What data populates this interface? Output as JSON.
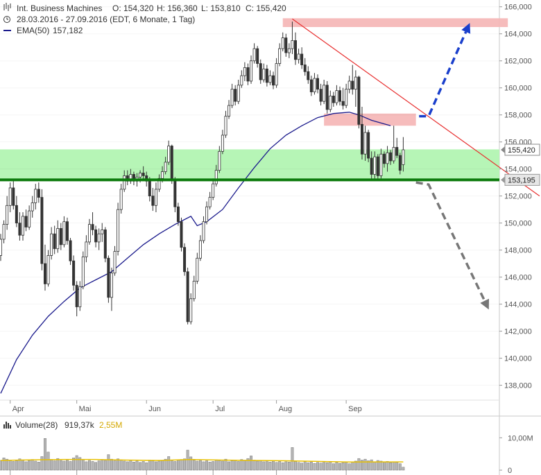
{
  "header": {
    "symbol_name": "Int. Business Machines",
    "ohlc": {
      "open": "O: 154,320",
      "high": "H: 156,360",
      "low": "L: 153,810",
      "close": "C: 155,420"
    },
    "range": "28.03.2016 - 27.09.2016 (EDT, 6 Monate, 1 Tag)",
    "ema_label": "EMA(50)",
    "ema_value": "157,182"
  },
  "volume_header": {
    "label": "Volume(28)",
    "value": "919,37k",
    "avg": "2,55M"
  },
  "colors": {
    "candle": "#333333",
    "ema": "#1a1a8c",
    "trendline": "#e83030",
    "resistance_zone": "#f5b8b8",
    "support_zone": "#b6f5b6",
    "support_line": "#0b7a0b",
    "bull_arrow": "#1a3fcc",
    "bear_arrow": "#777777",
    "volume_avg": "#e8c000"
  },
  "chart_data": {
    "type": "candlestick",
    "ylim": [
      136900,
      166500
    ],
    "yticks": [
      {
        "value": 138000,
        "label": "138,000"
      },
      {
        "value": 140000,
        "label": "140,000"
      },
      {
        "value": 142000,
        "label": "142,000"
      },
      {
        "value": 144000,
        "label": "144,000"
      },
      {
        "value": 146000,
        "label": "146,000"
      },
      {
        "value": 148000,
        "label": "148,000"
      },
      {
        "value": 150000,
        "label": "150,000"
      },
      {
        "value": 152000,
        "label": "152,000"
      },
      {
        "value": 154000,
        "label": "154,000"
      },
      {
        "value": 156000,
        "label": "156,000"
      },
      {
        "value": 158000,
        "label": "158,000"
      },
      {
        "value": 160000,
        "label": "160,000"
      },
      {
        "value": 162000,
        "label": "162,000"
      },
      {
        "value": 164000,
        "label": "164,000"
      },
      {
        "value": 166000,
        "label": "166,000"
      }
    ],
    "months": [
      {
        "label": "Apr",
        "day": 3
      },
      {
        "label": "Mai",
        "day": 24
      },
      {
        "label": "Jun",
        "day": 46
      },
      {
        "label": "Jul",
        "day": 67
      },
      {
        "label": "Aug",
        "day": 87
      },
      {
        "label": "Sep",
        "day": 109
      }
    ],
    "current_price": {
      "value": 155420,
      "label": "155,420"
    },
    "support_price": {
      "value": 153195,
      "label": "153,195"
    },
    "support_zone": [
      153195,
      155450
    ],
    "resistance_zone_upper": {
      "from_day": 89,
      "to_day": 160,
      "low": 164500,
      "high": 165150
    },
    "resistance_zone_lower": {
      "from_day": 102,
      "to_day": 131,
      "low": 157200,
      "high": 158100
    },
    "trendline": [
      {
        "day": 92,
        "price": 165100
      },
      {
        "day": 170,
        "price": 152000
      }
    ],
    "bull_arrow": [
      {
        "day": 132,
        "price": 157900
      },
      {
        "day": 135,
        "price": 157900
      },
      {
        "day": 148,
        "price": 164800
      }
    ],
    "bear_arrow": [
      {
        "day": 131,
        "price": 153000
      },
      {
        "day": 135,
        "price": 152850
      },
      {
        "day": 154,
        "price": 143600
      }
    ],
    "ema50": [
      [
        0,
        137400
      ],
      [
        5,
        139900
      ],
      [
        10,
        141700
      ],
      [
        15,
        143100
      ],
      [
        20,
        144200
      ],
      [
        25,
        145200
      ],
      [
        30,
        145800
      ],
      [
        35,
        146400
      ],
      [
        40,
        147400
      ],
      [
        45,
        148400
      ],
      [
        50,
        149200
      ],
      [
        55,
        149900
      ],
      [
        60,
        150500
      ],
      [
        62,
        149800
      ],
      [
        65,
        150100
      ],
      [
        70,
        151000
      ],
      [
        75,
        152600
      ],
      [
        80,
        154100
      ],
      [
        85,
        155500
      ],
      [
        90,
        156500
      ],
      [
        95,
        157200
      ],
      [
        100,
        157800
      ],
      [
        105,
        158100
      ],
      [
        110,
        158200
      ],
      [
        113,
        158000
      ],
      [
        117,
        157600
      ],
      [
        123,
        157200
      ]
    ],
    "candles": [
      [
        0,
        147600,
        149200,
        147200,
        148800
      ],
      [
        1,
        148800,
        150200,
        148500,
        149900
      ],
      [
        2,
        149900,
        152000,
        149500,
        151300
      ],
      [
        3,
        151300,
        153000,
        150800,
        152600
      ],
      [
        4,
        152600,
        153100,
        151000,
        151300
      ],
      [
        5,
        151300,
        152000,
        149700,
        150000
      ],
      [
        6,
        150000,
        150800,
        148700,
        149100
      ],
      [
        7,
        149100,
        150800,
        148700,
        150500
      ],
      [
        8,
        150500,
        151000,
        149400,
        149700
      ],
      [
        9,
        149700,
        151300,
        149500,
        150900
      ],
      [
        10,
        150900,
        152000,
        150400,
        151500
      ],
      [
        11,
        151500,
        152900,
        151000,
        152500
      ],
      [
        12,
        152500,
        153000,
        151500,
        151900
      ],
      [
        13,
        151900,
        152500,
        146500,
        147000
      ],
      [
        14,
        147000,
        148400,
        145000,
        145500
      ],
      [
        15,
        145500,
        148000,
        145300,
        147600
      ],
      [
        16,
        147600,
        149700,
        147300,
        149200
      ],
      [
        17,
        149200,
        149800,
        147700,
        148100
      ],
      [
        18,
        148100,
        150200,
        147800,
        149600
      ],
      [
        19,
        149600,
        150000,
        148000,
        148400
      ],
      [
        20,
        148400,
        150500,
        148200,
        150100
      ],
      [
        21,
        150100,
        150400,
        148400,
        148700
      ],
      [
        22,
        148700,
        148900,
        146900,
        147200
      ],
      [
        23,
        147200,
        147600,
        145000,
        145400
      ],
      [
        24,
        145400,
        145700,
        143100,
        143800
      ],
      [
        25,
        143800,
        145700,
        143500,
        145300
      ],
      [
        26,
        145300,
        147900,
        145100,
        147500
      ],
      [
        27,
        147500,
        149100,
        147100,
        148600
      ],
      [
        28,
        148600,
        150300,
        148400,
        149900
      ],
      [
        29,
        149900,
        150800,
        149100,
        149500
      ],
      [
        30,
        149500,
        149800,
        148200,
        148600
      ],
      [
        31,
        148600,
        149600,
        148000,
        149200
      ],
      [
        32,
        149200,
        150000,
        148600,
        149500
      ],
      [
        33,
        149500,
        149700,
        147100,
        147400
      ],
      [
        34,
        147400,
        147600,
        144100,
        144500
      ],
      [
        35,
        144500,
        146700,
        143500,
        146300
      ],
      [
        36,
        146300,
        148300,
        146100,
        147900
      ],
      [
        37,
        147900,
        151500,
        147600,
        151000
      ],
      [
        38,
        151000,
        152900,
        150700,
        152500
      ],
      [
        39,
        152500,
        153900,
        152300,
        153500
      ],
      [
        40,
        153500,
        153900,
        152800,
        153100
      ],
      [
        41,
        153100,
        154000,
        152900,
        153600
      ],
      [
        42,
        153600,
        153800,
        152800,
        153100
      ],
      [
        43,
        153100,
        153700,
        152700,
        153400
      ],
      [
        44,
        153400,
        153900,
        153000,
        153700
      ],
      [
        45,
        153700,
        154200,
        153100,
        153500
      ],
      [
        46,
        153500,
        153800,
        152700,
        153100
      ],
      [
        47,
        153100,
        153400,
        151600,
        152000
      ],
      [
        48,
        152000,
        152600,
        150900,
        151300
      ],
      [
        49,
        151300,
        153000,
        150800,
        152500
      ],
      [
        50,
        152500,
        153600,
        152300,
        153300
      ],
      [
        51,
        153300,
        154200,
        153000,
        153800
      ],
      [
        52,
        153800,
        154900,
        153600,
        154500
      ],
      [
        53,
        154500,
        156100,
        154300,
        155700
      ],
      [
        54,
        155700,
        155800,
        152900,
        153200
      ],
      [
        55,
        153200,
        153400,
        150800,
        151200
      ],
      [
        56,
        151200,
        151500,
        149800,
        150100
      ],
      [
        57,
        150100,
        150400,
        147900,
        148200
      ],
      [
        58,
        148200,
        148500,
        146100,
        146400
      ],
      [
        59,
        146400,
        146700,
        142500,
        142700
      ],
      [
        60,
        142700,
        144800,
        142500,
        144400
      ],
      [
        61,
        144400,
        146100,
        144200,
        145700
      ],
      [
        62,
        145700,
        147800,
        145500,
        147400
      ],
      [
        63,
        147400,
        149100,
        147200,
        148700
      ],
      [
        64,
        148700,
        150500,
        148500,
        150100
      ],
      [
        65,
        150100,
        151600,
        149900,
        151200
      ],
      [
        66,
        151200,
        152300,
        151000,
        151900
      ],
      [
        67,
        151900,
        153300,
        151700,
        152900
      ],
      [
        68,
        152900,
        154300,
        152700,
        153900
      ],
      [
        69,
        153900,
        155700,
        153700,
        155300
      ],
      [
        70,
        155300,
        156900,
        155100,
        156500
      ],
      [
        71,
        156500,
        158300,
        156300,
        157900
      ],
      [
        72,
        157900,
        159100,
        157700,
        158700
      ],
      [
        73,
        158700,
        160300,
        158500,
        159900
      ],
      [
        74,
        159900,
        160200,
        158700,
        159000
      ],
      [
        75,
        159000,
        160600,
        158800,
        160200
      ],
      [
        76,
        160200,
        161300,
        160000,
        160900
      ],
      [
        77,
        160900,
        161900,
        160500,
        161500
      ],
      [
        78,
        161500,
        161800,
        160200,
        160500
      ],
      [
        79,
        160500,
        162400,
        160300,
        162000
      ],
      [
        80,
        162000,
        163300,
        161800,
        162900
      ],
      [
        81,
        162900,
        163100,
        161500,
        161800
      ],
      [
        82,
        161800,
        162100,
        160300,
        160600
      ],
      [
        83,
        160600,
        161800,
        160400,
        161400
      ],
      [
        84,
        161400,
        161700,
        160100,
        160400
      ],
      [
        85,
        160400,
        161300,
        160200,
        160900
      ],
      [
        86,
        160900,
        161200,
        159900,
        160200
      ],
      [
        87,
        160200,
        162200,
        160000,
        161800
      ],
      [
        88,
        161800,
        163300,
        161600,
        162900
      ],
      [
        89,
        162900,
        164100,
        162700,
        163700
      ],
      [
        90,
        163700,
        164000,
        162300,
        162600
      ],
      [
        91,
        162600,
        163300,
        162200,
        162900
      ],
      [
        92,
        162900,
        164900,
        162500,
        163500
      ],
      [
        93,
        163500,
        164100,
        161700,
        162100
      ],
      [
        94,
        162100,
        162900,
        161800,
        162500
      ],
      [
        95,
        162500,
        163000,
        161400,
        161700
      ],
      [
        96,
        161700,
        162200,
        160900,
        161200
      ],
      [
        97,
        161200,
        161600,
        160300,
        160600
      ],
      [
        98,
        160600,
        160900,
        159400,
        159700
      ],
      [
        99,
        159700,
        161100,
        159500,
        160700
      ],
      [
        100,
        160700,
        161000,
        159600,
        159900
      ],
      [
        101,
        159900,
        160300,
        158700,
        159000
      ],
      [
        102,
        159000,
        160600,
        158800,
        160200
      ],
      [
        103,
        160200,
        160500,
        158100,
        158400
      ],
      [
        104,
        158400,
        159800,
        158200,
        159400
      ],
      [
        105,
        159400,
        159700,
        158600,
        158900
      ],
      [
        106,
        158900,
        160200,
        158700,
        159800
      ],
      [
        107,
        159800,
        160100,
        158700,
        159000
      ],
      [
        108,
        159000,
        160000,
        158400,
        158700
      ],
      [
        109,
        158700,
        160300,
        158500,
        159900
      ],
      [
        110,
        159900,
        160900,
        159600,
        160500
      ],
      [
        111,
        160500,
        161700,
        159500,
        159900
      ],
      [
        112,
        159900,
        161300,
        158600,
        160800
      ],
      [
        113,
        160800,
        160900,
        157000,
        157300
      ],
      [
        114,
        157300,
        158600,
        154700,
        155100
      ],
      [
        115,
        155100,
        157200,
        154600,
        156700
      ],
      [
        116,
        156700,
        156900,
        154500,
        154800
      ],
      [
        117,
        154800,
        155300,
        153200,
        153600
      ],
      [
        118,
        153600,
        155300,
        153200,
        154900
      ],
      [
        119,
        154900,
        155100,
        153200,
        153500
      ],
      [
        120,
        153500,
        155500,
        153300,
        155100
      ],
      [
        121,
        155100,
        155300,
        154100,
        154400
      ],
      [
        122,
        154400,
        155700,
        153800,
        155200
      ],
      [
        123,
        155200,
        155400,
        154300,
        154600
      ],
      [
        124,
        154600,
        157200,
        154400,
        155600
      ],
      [
        125,
        155600,
        156300,
        154800,
        155000
      ],
      [
        126,
        155000,
        155200,
        153600,
        153900
      ],
      [
        127,
        154320,
        156360,
        153810,
        155420
      ]
    ],
    "volume": {
      "ylim": [
        0,
        12000
      ],
      "yticks": [
        {
          "value": 0,
          "label": "0"
        },
        {
          "value": 10000,
          "label": "10,00M"
        }
      ],
      "values_k": [
        3000,
        3800,
        3400,
        3100,
        2700,
        2900,
        3500,
        3200,
        2600,
        3000,
        3300,
        2800,
        2500,
        4200,
        9800,
        5600,
        3300,
        2900,
        3600,
        3000,
        2800,
        3100,
        2700,
        3800,
        4500,
        3900,
        3200,
        2600,
        3000,
        2700,
        2400,
        2900,
        3300,
        3000,
        4800,
        3400,
        2900,
        3500,
        3200,
        2800,
        2600,
        3000,
        2500,
        2800,
        2400,
        2700,
        2300,
        3100,
        2900,
        2600,
        2800,
        3000,
        3400,
        4200,
        3000,
        2700,
        3100,
        3300,
        3500,
        6200,
        4100,
        3100,
        2800,
        3000,
        2600,
        2900,
        2500,
        2700,
        3200,
        3000,
        2800,
        3400,
        2600,
        2900,
        3100,
        2700,
        3300,
        3000,
        3600,
        4400,
        3100,
        2800,
        3000,
        2600,
        2900,
        2500,
        2800,
        2400,
        2700,
        2300,
        2600,
        2500,
        7000,
        2700,
        2400,
        2200,
        2600,
        2300,
        2500,
        2100,
        2400,
        2200,
        2600,
        2300,
        2500,
        2000,
        2400,
        2100,
        2300,
        2500,
        2000,
        2600,
        2800,
        3600,
        3100,
        3400,
        2900,
        3200,
        2600,
        3000,
        2800,
        2500,
        2700,
        2300,
        2600,
        2400,
        2000,
        919
      ],
      "avg_k": [
        [
          0,
          3000
        ],
        [
          10,
          3200
        ],
        [
          20,
          3300
        ],
        [
          30,
          3300
        ],
        [
          40,
          3100
        ],
        [
          50,
          3000
        ],
        [
          60,
          3300
        ],
        [
          70,
          3100
        ],
        [
          80,
          3000
        ],
        [
          90,
          2900
        ],
        [
          100,
          2700
        ],
        [
          110,
          2500
        ],
        [
          120,
          2550
        ],
        [
          127,
          2550
        ]
      ]
    }
  }
}
